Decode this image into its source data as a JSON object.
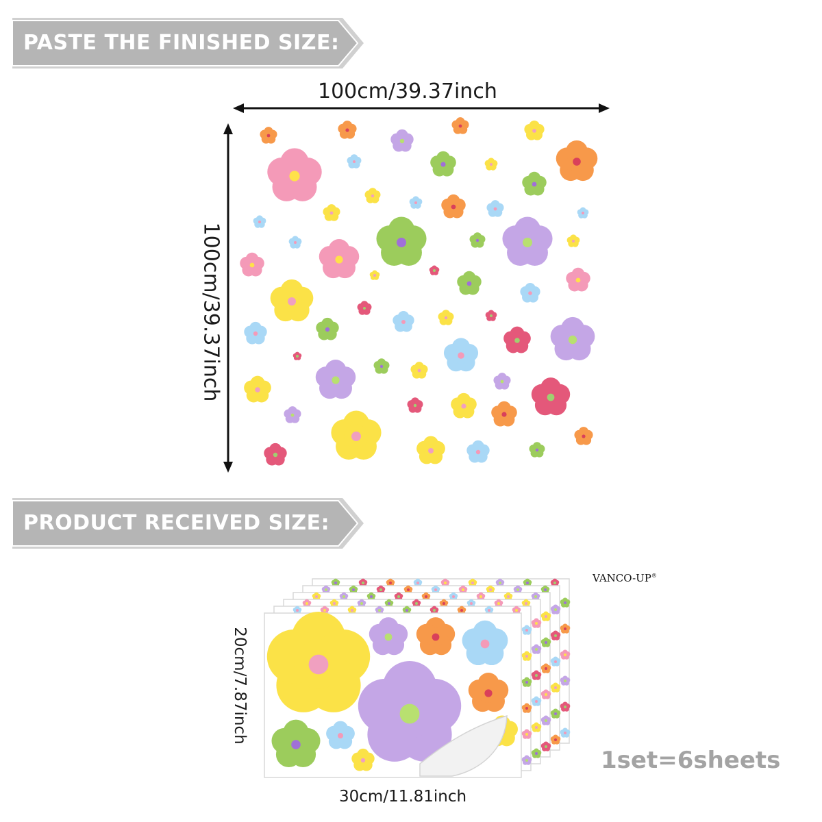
{
  "banners": {
    "finished": "PASTE THE FINISHED SIZE:",
    "received": "PRODUCT RECEIVED SIZE:"
  },
  "finished_dimensions": {
    "width": "100cm/39.37inch",
    "height": "100cm/39.37inch"
  },
  "received_dimensions": {
    "width": "30cm/11.81inch",
    "height": "20cm/7.87inch"
  },
  "brand": {
    "name": "VANCO-UP",
    "mark": "®"
  },
  "set_count": "1set=6sheets",
  "colors": {
    "banner": "#b5b5b5",
    "pink": "#f49ab8",
    "yellow": "#fbe247",
    "green": "#9ccc5c",
    "purple": "#c4a6e6",
    "blue": "#a9d8f6",
    "orange": "#f7994a",
    "red": "#e4587a"
  }
}
